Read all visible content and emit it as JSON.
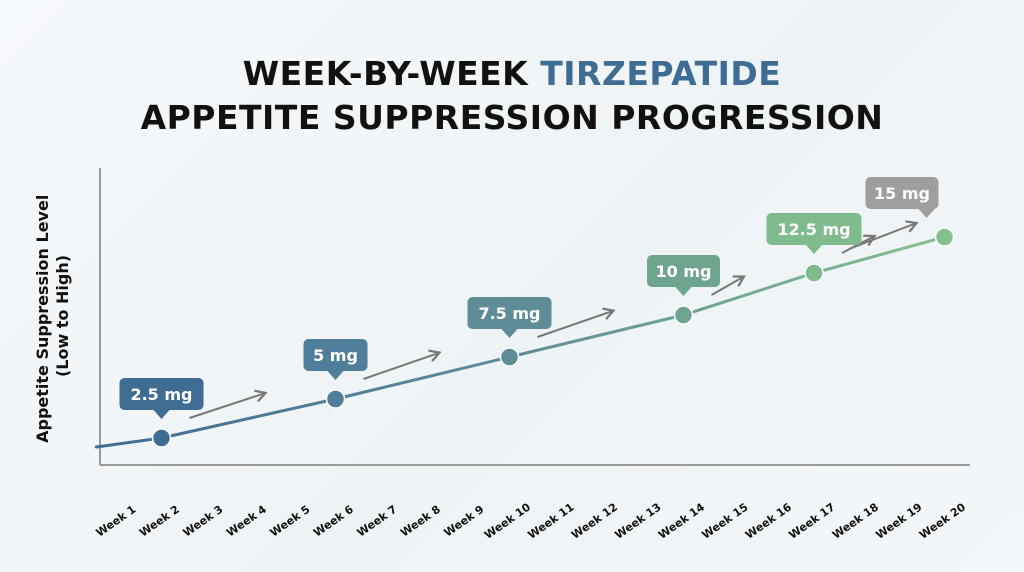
{
  "title": {
    "line1_prefix": "WEEK-BY-WEEK",
    "line1_accent": "TIRZEPATIDE",
    "line2": "APPETITE SUPPRESSION PROGRESSION"
  },
  "colors": {
    "start": "#3f6c93",
    "mid": "#5f9b8a",
    "light_green": "#7fbb8c",
    "gray": "#9e9e9e",
    "axis": "#9a9a9a",
    "arrow": "#777777"
  },
  "chart_data": {
    "type": "line",
    "title": "WEEK-BY-WEEK TIRZEPATIDE APPETITE SUPPRESSION PROGRESSION",
    "ylabel": "Appetite Suppression Level (Low to High)",
    "ylabel_lines": [
      "Appetite Suppression Level",
      "(Low to High)"
    ],
    "xlabel": "",
    "categories": [
      "Week 1",
      "Week 2",
      "Week 3",
      "Week 4",
      "Week 5",
      "Week 6",
      "Week 7",
      "Week 8",
      "Week 9",
      "Week 10",
      "Week 11",
      "Week 12",
      "Week 13",
      "Week 14",
      "Week 15",
      "Week 16",
      "Week 17",
      "Week 18",
      "Week 19",
      "Week 20"
    ],
    "ylim": [
      0,
      100
    ],
    "grid": false,
    "line_start": {
      "x": 0.5,
      "y": 6
    },
    "points": [
      {
        "week": 2,
        "value": 9,
        "label": "2.5 mg",
        "color": "#3f6c93"
      },
      {
        "week": 6,
        "value": 22,
        "label": "5 mg",
        "color": "#4e7e99"
      },
      {
        "week": 10,
        "value": 36,
        "label": "7.5 mg",
        "color": "#5e8d98"
      },
      {
        "week": 14,
        "value": 50,
        "label": "10 mg",
        "color": "#6fa58f"
      },
      {
        "week": 17,
        "value": 64,
        "label": "12.5 mg",
        "color": "#7fbb8c"
      },
      {
        "week": 20,
        "value": 76,
        "label": "15 mg",
        "color": "#9e9e9e",
        "dot_color": "#86c08f"
      }
    ]
  }
}
